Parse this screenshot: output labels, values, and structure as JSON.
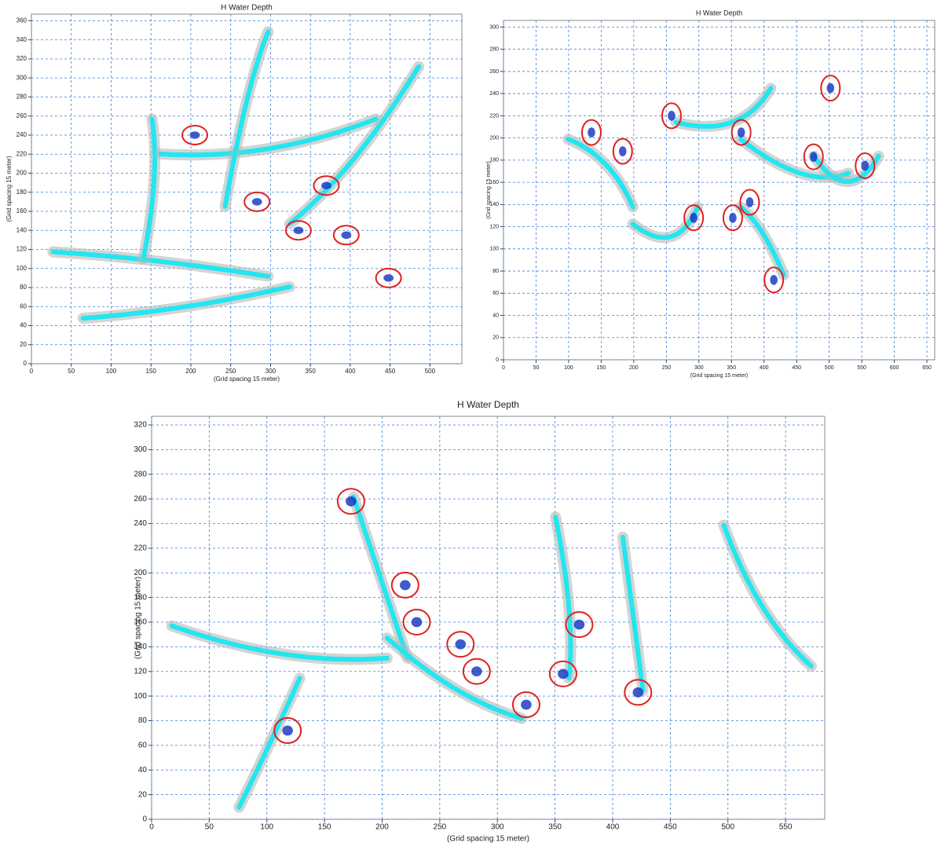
{
  "chart_data": [
    {
      "type": "map",
      "title": "H Water Depth",
      "x_label": "(Grid spacing 15 meter)",
      "y_label": "(Grid spacing 15 meter)",
      "xlim": [
        0,
        540
      ],
      "ylim": [
        0,
        367
      ],
      "xticks": [
        0,
        50,
        100,
        150,
        200,
        250,
        300,
        350,
        400,
        450,
        500
      ],
      "yticks": [
        0,
        20,
        40,
        60,
        80,
        100,
        120,
        140,
        160,
        180,
        200,
        220,
        240,
        260,
        280,
        300,
        320,
        340,
        360
      ],
      "grid": true,
      "markers": {
        "color": "#e02020",
        "x": [
          205,
          283,
          370,
          335,
          395,
          448
        ],
        "y": [
          240,
          170,
          187,
          140,
          135,
          90
        ]
      }
    },
    {
      "type": "map",
      "title": "H Water Depth",
      "x_label": "(Grid spacing 15 meter)",
      "y_label": "(Grid spacing 15 meter)",
      "xlim": [
        0,
        662
      ],
      "ylim": [
        0,
        306
      ],
      "xticks": [
        0,
        50,
        100,
        150,
        200,
        250,
        300,
        350,
        400,
        450,
        500,
        550,
        600,
        650
      ],
      "yticks": [
        0,
        20,
        40,
        60,
        80,
        100,
        120,
        140,
        160,
        180,
        200,
        220,
        240,
        260,
        280,
        300
      ],
      "grid": true,
      "markers": {
        "color": "#e02020",
        "x": [
          135,
          183,
          258,
          365,
          292,
          352,
          378,
          415,
          476,
          502,
          555
        ],
        "y": [
          205,
          188,
          220,
          205,
          128,
          128,
          142,
          72,
          183,
          245,
          175
        ]
      }
    },
    {
      "type": "map",
      "title": "H Water Depth",
      "x_label": "(Grid spacing 15 meter)",
      "y_label": "(Grid spacing 15 meter)",
      "xlim": [
        0,
        584
      ],
      "ylim": [
        0,
        327
      ],
      "xticks": [
        0,
        50,
        100,
        150,
        200,
        250,
        300,
        350,
        400,
        450,
        500,
        550
      ],
      "yticks": [
        0,
        20,
        40,
        60,
        80,
        100,
        120,
        140,
        160,
        180,
        200,
        220,
        240,
        260,
        280,
        300,
        320
      ],
      "grid": true,
      "markers": {
        "color": "#e02020",
        "x": [
          173,
          118,
          220,
          230,
          268,
          282,
          325,
          357,
          371,
          422
        ],
        "y": [
          258,
          72,
          190,
          160,
          142,
          120,
          93,
          118,
          158,
          103
        ]
      }
    }
  ]
}
